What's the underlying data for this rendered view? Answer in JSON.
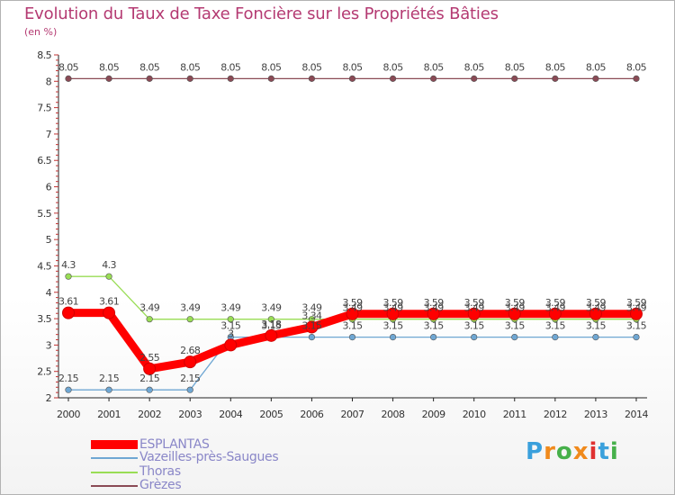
{
  "chart_data": {
    "type": "line",
    "title": "Evolution du Taux de Taxe Foncière sur les Propriétés Bâties",
    "ylabel": "(en %)",
    "xlabel": "",
    "ylim": [
      2,
      8.5
    ],
    "yticks": [
      "2",
      "2.5",
      "3",
      "3.5",
      "4",
      "4.5",
      "5",
      "5.5",
      "6",
      "6.5",
      "7",
      "7.5",
      "8",
      "8.5"
    ],
    "categories": [
      "2000",
      "2001",
      "2002",
      "2003",
      "2004",
      "2005",
      "2006",
      "2007",
      "2008",
      "2009",
      "2010",
      "2011",
      "2012",
      "2013",
      "2014"
    ],
    "series": [
      {
        "name": "ESPLANTAS",
        "color": "#ff0000",
        "style": "thick",
        "values": [
          3.61,
          3.61,
          2.55,
          2.68,
          3.0,
          3.18,
          3.34,
          3.59,
          3.59,
          3.59,
          3.59,
          3.59,
          3.59,
          3.59,
          3.59
        ],
        "labels": [
          "3.61",
          "3.61",
          "2.55",
          "2.68",
          "3",
          "3.18",
          "3.34",
          "3.59",
          "3.59",
          "3.59",
          "3.59",
          "3.59",
          "3.59",
          "3.59",
          "3.59"
        ]
      },
      {
        "name": "Vazeilles-près-Saugues",
        "color": "#6fa7d3",
        "style": "thin",
        "values": [
          2.15,
          2.15,
          2.15,
          2.15,
          3.15,
          3.15,
          3.15,
          3.15,
          3.15,
          3.15,
          3.15,
          3.15,
          3.15,
          3.15,
          3.15
        ],
        "labels": [
          "2.15",
          "2.15",
          "2.15",
          "2.15",
          "3.15",
          "3.15",
          "3.15",
          "3.15",
          "3.15",
          "3.15",
          "3.15",
          "3.15",
          "3.15",
          "3.15",
          "3.15"
        ]
      },
      {
        "name": "Thoras",
        "color": "#99dd55",
        "style": "thin",
        "values": [
          4.3,
          4.3,
          3.49,
          3.49,
          3.49,
          3.49,
          3.49,
          3.49,
          3.49,
          3.49,
          3.49,
          3.49,
          3.49,
          3.49,
          3.49
        ],
        "labels": [
          "4.3",
          "4.3",
          "3.49",
          "3.49",
          "3.49",
          "3.49",
          "3.49",
          "3.49",
          "3.49",
          "3.49",
          "3.49",
          "3.49",
          "3.49",
          "3.49",
          "3.49"
        ]
      },
      {
        "name": "Grèzes",
        "color": "#8a4a55",
        "style": "thin",
        "values": [
          8.05,
          8.05,
          8.05,
          8.05,
          8.05,
          8.05,
          8.05,
          8.05,
          8.05,
          8.05,
          8.05,
          8.05,
          8.05,
          8.05,
          8.05
        ],
        "labels": [
          "8.05",
          "8.05",
          "8.05",
          "8.05",
          "8.05",
          "8.05",
          "8.05",
          "8.05",
          "8.05",
          "8.05",
          "8.05",
          "8.05",
          "8.05",
          "8.05",
          "8.05"
        ]
      }
    ],
    "legend_position": "bottom-left",
    "grid": false
  },
  "brand": {
    "letters": [
      "P",
      "r",
      "o",
      "x",
      "i",
      "t",
      "i"
    ],
    "colors": [
      "#3aa0dc",
      "#f08a1c",
      "#46b04a",
      "#f08a1c",
      "#e03030",
      "#3aa0dc",
      "#46b04a"
    ]
  }
}
